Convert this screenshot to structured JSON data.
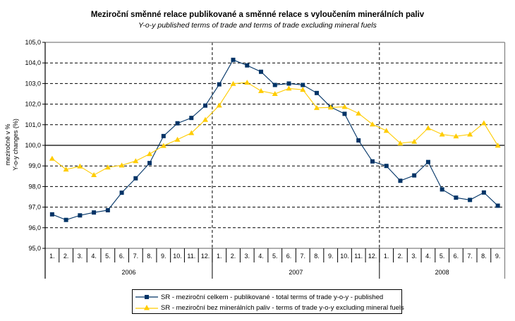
{
  "chart_data": {
    "type": "line",
    "title": "Meziroční směnné relace publikované a směnné relace s vyloučením minerálních paliv",
    "subtitle": "Y-o-y published terms of trade and terms of trade excluding mineral fuels",
    "ylabel_lines": [
      "meziročně v %",
      "Y-o-y changes (%)"
    ],
    "xlabel": "",
    "ylim": [
      95.0,
      105.0
    ],
    "y_ticks": [
      "95,0",
      "96,0",
      "97,0",
      "98,0",
      "99,0",
      "100,0",
      "101,0",
      "102,0",
      "103,0",
      "104,0",
      "105,0"
    ],
    "y_tick_step": 1.0,
    "reference_line": 100.0,
    "grid": "horizontal dashed",
    "categories": [
      "1.",
      "2.",
      "3.",
      "4.",
      "5.",
      "6.",
      "7.",
      "8.",
      "9.",
      "10.",
      "11.",
      "12.",
      "1.",
      "2.",
      "3.",
      "4.",
      "5.",
      "6.",
      "7.",
      "8.",
      "9.",
      "10.",
      "11.",
      "12.",
      "1.",
      "2.",
      "3.",
      "4.",
      "5.",
      "6.",
      "7.",
      "8.",
      "9."
    ],
    "year_groups": [
      {
        "label": "2006",
        "months": 12
      },
      {
        "label": "2007",
        "months": 12
      },
      {
        "label": "2008",
        "months": 9
      }
    ],
    "series": [
      {
        "name": "SR - meziroční celkem - publikované - total terms of trade y-o-y - published",
        "color": "#003366",
        "marker": "square",
        "values": [
          96.65,
          96.38,
          96.6,
          96.74,
          96.85,
          97.7,
          98.4,
          99.14,
          100.45,
          101.07,
          101.33,
          101.93,
          102.96,
          104.15,
          103.88,
          103.57,
          102.93,
          103.0,
          102.93,
          102.54,
          101.86,
          101.53,
          100.24,
          99.22,
          99.0,
          98.28,
          98.54,
          99.19,
          97.86,
          97.46,
          97.35,
          97.71,
          97.07
        ]
      },
      {
        "name": "SR - meziroční bez minerálních paliv - terms of trade y-o-y excluding mineral fuels",
        "color": "#FFCC00",
        "marker": "triangle",
        "values": [
          99.36,
          98.83,
          98.98,
          98.56,
          98.93,
          99.03,
          99.24,
          99.58,
          99.98,
          100.28,
          100.6,
          101.24,
          101.94,
          102.99,
          103.05,
          102.64,
          102.5,
          102.76,
          102.7,
          101.82,
          101.84,
          101.87,
          101.55,
          101.02,
          100.71,
          100.1,
          100.18,
          100.84,
          100.53,
          100.44,
          100.53,
          101.08,
          99.99
        ]
      }
    ],
    "legend_position": "bottom-center"
  }
}
